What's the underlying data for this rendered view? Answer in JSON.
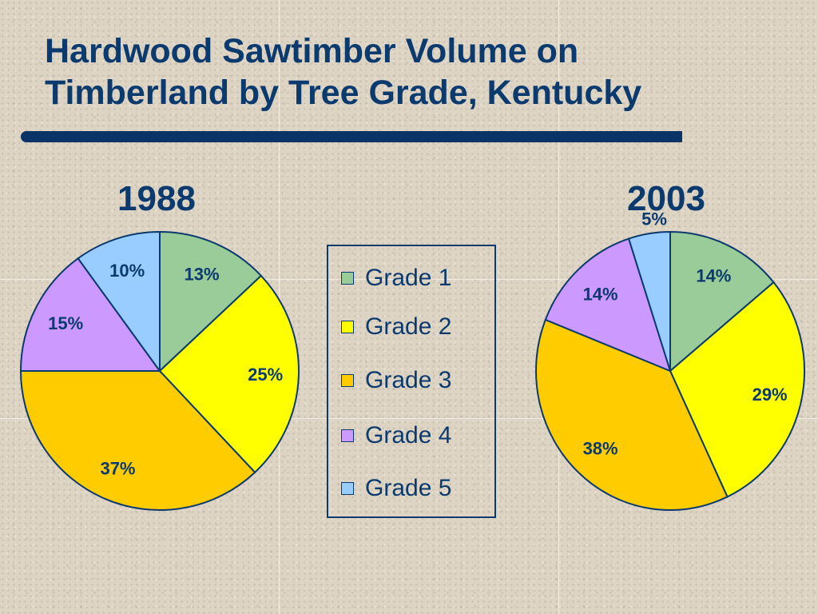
{
  "slide": {
    "title_line1": "Hardwood Sawtimber Volume on",
    "title_line2": "Timberland by Tree Grade, Kentucky"
  },
  "colors": {
    "title": "#0b3a6e",
    "outline": "#0b3a6e",
    "grade_1": "#99cc99",
    "grade_2": "#ffff00",
    "grade_3": "#ffcc00",
    "grade_4": "#cc99ff",
    "grade_5": "#99ccff"
  },
  "chart_data": {
    "type": "pie",
    "legend_position": "center",
    "categories": [
      "Grade 1",
      "Grade 2",
      "Grade 3",
      "Grade 4",
      "Grade 5"
    ],
    "series": [
      {
        "name": "1988",
        "values": [
          13,
          25,
          37,
          15,
          10
        ],
        "labels": [
          "13%",
          "25%",
          "37%",
          "15%",
          "10%"
        ]
      },
      {
        "name": "2003",
        "values": [
          14,
          29,
          38,
          14,
          5
        ],
        "labels": [
          "14%",
          "29%",
          "38%",
          "14%",
          "5%"
        ]
      }
    ]
  }
}
